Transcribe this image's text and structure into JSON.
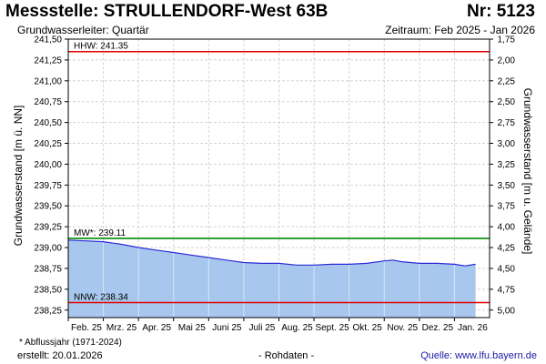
{
  "header": {
    "title": "Messstelle: STRULLENDORF-West 63B",
    "number": "Nr: 5123",
    "aquifer": "Grundwasserleiter: Quartär",
    "period": "Zeitraum: Feb 2025 - Jan 2026"
  },
  "footer": {
    "footnote": "* Abflussjahr (1971-2024)",
    "created": "erstellt:  20.01.2026",
    "raw_data": "- Rohdaten -",
    "source": "Quelle: www.lfu.bayern.de"
  },
  "chart_data": {
    "type": "area",
    "ylabel_left": "Grundwasserstand [m ü. NN]",
    "ylabel_right": "Grundwasserstand [m u. Gelände]",
    "ylim": [
      238.16,
      241.5
    ],
    "y_ticks": [
      "241,50",
      "241,25",
      "241,00",
      "240,75",
      "240,50",
      "240,25",
      "240,00",
      "239,75",
      "239,50",
      "239,25",
      "239,00",
      "238,75",
      "238,50",
      "238,25"
    ],
    "y_tick_values": [
      241.5,
      241.25,
      241.0,
      240.75,
      240.5,
      240.25,
      240.0,
      239.75,
      239.5,
      239.25,
      239.0,
      238.75,
      238.5,
      238.25
    ],
    "y2_ticks": [
      "1,75",
      "2,00",
      "2,25",
      "2,50",
      "2,75",
      "3,00",
      "3,25",
      "3,50",
      "3,75",
      "4,00",
      "4,25",
      "4,50",
      "4,75",
      "5,00"
    ],
    "y2_offset": 243.25,
    "x_labels": [
      "Feb. 25",
      "Mrz. 25",
      "Apr. 25",
      "Mai 25",
      "Juni 25",
      "Juli 25",
      "Aug. 25",
      "Sept. 25",
      "Okt. 25",
      "Nov. 25",
      "Dez. 25",
      "Jan. 26"
    ],
    "x_months": [
      0,
      1,
      2,
      3,
      4,
      5,
      6,
      7,
      8,
      9,
      10,
      11
    ],
    "x_range_months": [
      0,
      12
    ],
    "grid": true,
    "reference_lines": [
      {
        "label": "HHW: 241.35",
        "value": 241.35,
        "color": "#e00000"
      },
      {
        "label": "MW*: 239.11",
        "value": 239.11,
        "color": "#008a00"
      },
      {
        "label": "NNW: 238.34",
        "value": 238.34,
        "color": "#e00000"
      }
    ],
    "series": [
      {
        "color": "#2b2bd6",
        "fill": "#a7c7ee",
        "x": [
          0,
          0.5,
          1,
          1.5,
          2,
          2.5,
          3,
          3.5,
          4,
          4.5,
          5,
          5.5,
          6,
          6.5,
          7,
          7.5,
          8,
          8.5,
          9,
          9.25,
          9.5,
          10,
          10.5,
          11,
          11.3,
          11.6
        ],
        "values": [
          239.09,
          239.08,
          239.07,
          239.04,
          239.0,
          238.97,
          238.94,
          238.91,
          238.88,
          238.85,
          238.82,
          238.81,
          238.81,
          238.79,
          238.79,
          238.8,
          238.8,
          238.81,
          238.84,
          238.85,
          238.83,
          238.81,
          238.81,
          238.8,
          238.78,
          238.8
        ]
      }
    ]
  }
}
